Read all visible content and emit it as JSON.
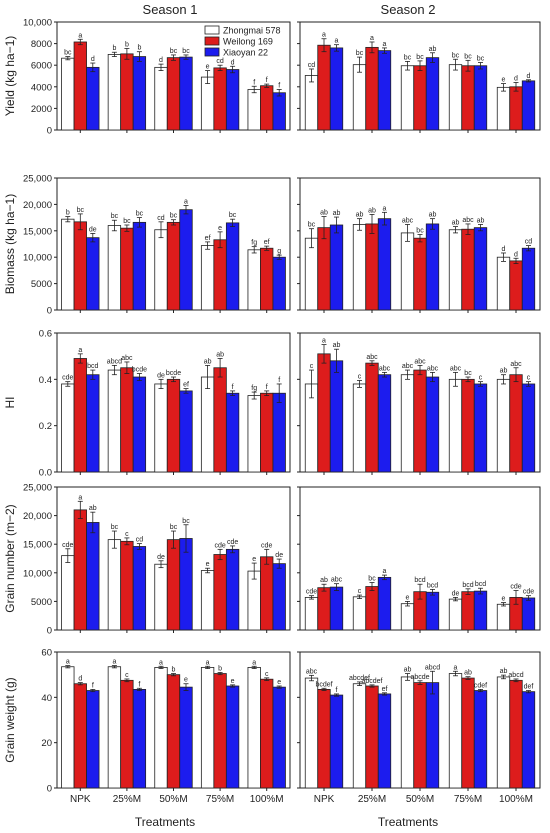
{
  "figure": {
    "season_titles": [
      "Season 1",
      "Season 2"
    ],
    "xlabel": "Treatments",
    "legend": [
      {
        "name": "Zhongmai 578",
        "color": "#ffffff"
      },
      {
        "name": "Weilong 169",
        "color": "#dd1c1c"
      },
      {
        "name": "Xiaoyan 22",
        "color": "#1c1cee"
      }
    ]
  },
  "chart_data": [
    {
      "type": "bar",
      "title": "Season 1",
      "ylabel": "Yield (kg ha−1)",
      "categories": [
        "NPK",
        "25%M",
        "50%M",
        "75%M",
        "100%M"
      ],
      "ylim": [
        0,
        10000
      ],
      "yticks": [
        0,
        2000,
        4000,
        6000,
        8000,
        10000
      ],
      "ytick_labels": [
        "0",
        "2000",
        "4000",
        "6000",
        "8000",
        "10,000"
      ],
      "series": [
        {
          "name": "Zhongmai 578",
          "values": [
            6650,
            7000,
            5800,
            4900,
            3750
          ],
          "errors": [
            150,
            200,
            300,
            600,
            300
          ],
          "letters": [
            "bc",
            "b",
            "d",
            "e",
            "f"
          ]
        },
        {
          "name": "Weilong 169",
          "values": [
            8150,
            7050,
            6700,
            5750,
            4100
          ],
          "errors": [
            250,
            500,
            250,
            250,
            150
          ],
          "letters": [
            "a",
            "b",
            "bc",
            "cd",
            "f"
          ]
        },
        {
          "name": "Xiaoyan 22",
          "values": [
            5800,
            6800,
            6750,
            5600,
            3450
          ],
          "errors": [
            400,
            450,
            200,
            300,
            300
          ],
          "letters": [
            "d",
            "b",
            "bc",
            "d",
            "f"
          ]
        }
      ]
    },
    {
      "type": "bar",
      "title": "Season 2",
      "ylabel": "",
      "categories": [
        "NPK",
        "25%M",
        "50%M",
        "75%M",
        "100%M"
      ],
      "ylim": [
        0,
        10000
      ],
      "yticks": [
        0,
        2000,
        4000,
        6000,
        8000,
        10000
      ],
      "ytick_labels": [
        "",
        "",
        "",
        "",
        "",
        ""
      ],
      "series": [
        {
          "name": "Zhongmai 578",
          "values": [
            5050,
            6050,
            5950,
            6050,
            3950
          ],
          "errors": [
            600,
            700,
            400,
            500,
            350
          ],
          "letters": [
            "cd",
            "bc",
            "bc",
            "bc",
            "e"
          ]
        },
        {
          "name": "Weilong 169",
          "values": [
            7850,
            7650,
            5950,
            5950,
            4000
          ],
          "errors": [
            600,
            500,
            450,
            500,
            400
          ],
          "letters": [
            "a",
            "a",
            "bc",
            "bc",
            "d"
          ]
        },
        {
          "name": "Xiaoyan 22",
          "values": [
            7600,
            7350,
            6700,
            5950,
            4550
          ],
          "errors": [
            300,
            250,
            450,
            300,
            100
          ],
          "letters": [
            "a",
            "a",
            "ab",
            "bc",
            "d"
          ]
        }
      ]
    },
    {
      "type": "bar",
      "title": "",
      "ylabel": "Biomass (kg ha−1)",
      "categories": [
        "NPK",
        "25%M",
        "50%M",
        "75%M",
        "100%M"
      ],
      "ylim": [
        0,
        25000
      ],
      "yticks": [
        0,
        5000,
        10000,
        15000,
        20000,
        25000
      ],
      "ytick_labels": [
        "0",
        "5000",
        "10,000",
        "15,000",
        "20,000",
        "25,000"
      ],
      "series": [
        {
          "name": "Zhongmai 578",
          "values": [
            17200,
            16000,
            15200,
            12200,
            11400
          ],
          "errors": [
            500,
            1000,
            1500,
            700,
            600
          ],
          "letters": [
            "b",
            "bc",
            "cd",
            "ef",
            "fg"
          ]
        },
        {
          "name": "Weilong 169",
          "values": [
            16700,
            15500,
            16600,
            13300,
            11700
          ],
          "errors": [
            1500,
            600,
            500,
            1500,
            400
          ],
          "letters": [
            "bc",
            "bc",
            "bc",
            "e",
            "ef"
          ]
        },
        {
          "name": "Xiaoyan 22",
          "values": [
            13700,
            16600,
            19000,
            16500,
            10000
          ],
          "errors": [
            800,
            900,
            800,
            700,
            400
          ],
          "letters": [
            "de",
            "bc",
            "a",
            "bc",
            "g"
          ]
        }
      ]
    },
    {
      "type": "bar",
      "title": "",
      "ylabel": "",
      "categories": [
        "NPK",
        "25%M",
        "50%M",
        "75%M",
        "100%M"
      ],
      "ylim": [
        0,
        25000
      ],
      "yticks": [
        0,
        5000,
        10000,
        15000,
        20000,
        25000
      ],
      "ytick_labels": [
        "",
        "",
        "",
        "",
        "",
        ""
      ],
      "series": [
        {
          "name": "Zhongmai 578",
          "values": [
            13600,
            16200,
            14600,
            15200,
            10000
          ],
          "errors": [
            1800,
            1100,
            1600,
            600,
            800
          ],
          "letters": [
            "bc",
            "ab",
            "abc",
            "ab",
            "d"
          ]
        },
        {
          "name": "Weilong 169",
          "values": [
            15600,
            16300,
            13600,
            15300,
            9300
          ],
          "errors": [
            2100,
            1800,
            700,
            1000,
            500
          ],
          "letters": [
            "ab",
            "ab",
            "bc",
            "abc",
            "d"
          ]
        },
        {
          "name": "Xiaoyan 22",
          "values": [
            16100,
            17300,
            16300,
            15600,
            11700
          ],
          "errors": [
            1500,
            1200,
            1000,
            600,
            500
          ],
          "letters": [
            "ab",
            "a",
            "ab",
            "ab",
            "cd"
          ]
        }
      ]
    },
    {
      "type": "bar",
      "title": "",
      "ylabel": "HI",
      "categories": [
        "NPK",
        "25%M",
        "50%M",
        "75%M",
        "100%M"
      ],
      "ylim": [
        0,
        0.6
      ],
      "yticks": [
        0,
        0.2,
        0.4,
        0.6
      ],
      "ytick_labels": [
        "0.0",
        "0.2",
        "0.4",
        "0.6"
      ],
      "series": [
        {
          "name": "Zhongmai 578",
          "values": [
            0.38,
            0.44,
            0.38,
            0.41,
            0.33
          ],
          "errors": [
            0.01,
            0.02,
            0.02,
            0.05,
            0.015
          ],
          "letters": [
            "cde",
            "abcd",
            "de",
            "ab",
            "fg"
          ]
        },
        {
          "name": "Weilong 169",
          "values": [
            0.49,
            0.45,
            0.4,
            0.45,
            0.34
          ],
          "errors": [
            0.02,
            0.025,
            0.01,
            0.04,
            0.01
          ],
          "letters": [
            "a",
            "abc",
            "bcde",
            "ab",
            "f"
          ]
        },
        {
          "name": "Xiaoyan 22",
          "values": [
            0.42,
            0.41,
            0.35,
            0.34,
            0.34
          ],
          "errors": [
            0.02,
            0.015,
            0.01,
            0.01,
            0.04
          ],
          "letters": [
            "bcd",
            "bcde",
            "ef",
            "f",
            "f"
          ]
        }
      ]
    },
    {
      "type": "bar",
      "title": "",
      "ylabel": "",
      "categories": [
        "NPK",
        "25%M",
        "50%M",
        "75%M",
        "100%M"
      ],
      "ylim": [
        0,
        0.6
      ],
      "yticks": [
        0,
        0.2,
        0.4,
        0.6
      ],
      "ytick_labels": [
        "",
        "",
        "",
        ""
      ],
      "series": [
        {
          "name": "Zhongmai 578",
          "values": [
            0.38,
            0.38,
            0.42,
            0.4,
            0.4
          ],
          "errors": [
            0.06,
            0.015,
            0.02,
            0.03,
            0.02
          ],
          "letters": [
            "c",
            "c",
            "abc",
            "abc",
            "ab"
          ]
        },
        {
          "name": "Weilong 169",
          "values": [
            0.51,
            0.47,
            0.44,
            0.4,
            0.42
          ],
          "errors": [
            0.04,
            0.01,
            0.02,
            0.01,
            0.03
          ],
          "letters": [
            "a",
            "abc",
            "abc",
            "bc",
            "abc"
          ]
        },
        {
          "name": "Xiaoyan 22",
          "values": [
            0.48,
            0.42,
            0.41,
            0.38,
            0.38
          ],
          "errors": [
            0.05,
            0.01,
            0.02,
            0.01,
            0.01
          ],
          "letters": [
            "ab",
            "abc",
            "abc",
            "c",
            "c"
          ]
        }
      ]
    },
    {
      "type": "bar",
      "title": "",
      "ylabel": "Grain number (m−2)",
      "categories": [
        "NPK",
        "25%M",
        "50%M",
        "75%M",
        "100%M"
      ],
      "ylim": [
        0,
        25000
      ],
      "yticks": [
        0,
        5000,
        10000,
        15000,
        20000,
        25000
      ],
      "ytick_labels": [
        "0",
        "5000",
        "10,000",
        "15,000",
        "20,000",
        "25,000"
      ],
      "series": [
        {
          "name": "Zhongmai 578",
          "values": [
            13000,
            15800,
            11500,
            10400,
            10300
          ],
          "errors": [
            1200,
            1500,
            600,
            400,
            1400
          ],
          "letters": [
            "cde",
            "bc",
            "de",
            "e",
            "e"
          ]
        },
        {
          "name": "Weilong 169",
          "values": [
            21000,
            15500,
            15800,
            13200,
            12800
          ],
          "errors": [
            1500,
            600,
            1500,
            900,
            1300
          ],
          "letters": [
            "a",
            "c",
            "bc",
            "cde",
            "cde"
          ]
        },
        {
          "name": "Xiaoyan 22",
          "values": [
            18800,
            14600,
            16000,
            14100,
            11600
          ],
          "errors": [
            1800,
            500,
            2400,
            600,
            800
          ],
          "letters": [
            "ab",
            "cd",
            "bc",
            "cde",
            "de"
          ]
        }
      ]
    },
    {
      "type": "bar",
      "title": "",
      "ylabel": "",
      "categories": [
        "NPK",
        "25%M",
        "50%M",
        "75%M",
        "100%M"
      ],
      "ylim": [
        0,
        25000
      ],
      "yticks": [
        0,
        5000,
        10000,
        15000,
        20000,
        25000
      ],
      "ytick_labels": [
        "",
        "",
        "",
        "",
        "",
        ""
      ],
      "series": [
        {
          "name": "Zhongmai 578",
          "values": [
            5700,
            5800,
            4600,
            5400,
            4500
          ],
          "errors": [
            300,
            300,
            400,
            300,
            300
          ],
          "letters": [
            "cde",
            "c",
            "e",
            "de",
            "e"
          ]
        },
        {
          "name": "Weilong 169",
          "values": [
            7400,
            7600,
            6700,
            6700,
            5700
          ],
          "errors": [
            600,
            700,
            1300,
            500,
            1200
          ],
          "letters": [
            "ab",
            "bc",
            "bcd",
            "bcd",
            "cde"
          ]
        },
        {
          "name": "Xiaoyan 22",
          "values": [
            7500,
            9200,
            6600,
            6800,
            5600
          ],
          "errors": [
            600,
            400,
            500,
            500,
            400
          ],
          "letters": [
            "abc",
            "a",
            "bcd",
            "bcd",
            "cde"
          ]
        }
      ]
    },
    {
      "type": "bar",
      "title": "",
      "ylabel": "Grain weight (g)",
      "categories": [
        "NPK",
        "25%M",
        "50%M",
        "75%M",
        "100%M"
      ],
      "ylim": [
        0,
        60
      ],
      "yticks": [
        0,
        20,
        40,
        60
      ],
      "ytick_labels": [
        "0",
        "20",
        "40",
        "60"
      ],
      "series": [
        {
          "name": "Zhongmai 578",
          "values": [
            53.5,
            53.5,
            53.2,
            53.2,
            53.2
          ],
          "errors": [
            0.5,
            0.5,
            0.5,
            0.5,
            0.5
          ],
          "letters": [
            "a",
            "a",
            "a",
            "a",
            "a"
          ]
        },
        {
          "name": "Weilong 169",
          "values": [
            46.0,
            47.5,
            50.0,
            50.5,
            48.0
          ],
          "errors": [
            0.5,
            0.6,
            0.5,
            0.5,
            0.6
          ],
          "letters": [
            "d",
            "c",
            "b",
            "b",
            "c"
          ]
        },
        {
          "name": "Xiaoyan 22",
          "values": [
            43.0,
            43.5,
            44.5,
            45.0,
            44.5
          ],
          "errors": [
            0.5,
            0.5,
            1.5,
            0.5,
            0.5
          ],
          "letters": [
            "f",
            "f",
            "e",
            "e",
            "e"
          ]
        }
      ]
    },
    {
      "type": "bar",
      "title": "",
      "ylabel": "",
      "categories": [
        "NPK",
        "25%M",
        "50%M",
        "75%M",
        "100%M"
      ],
      "ylim": [
        0,
        60
      ],
      "yticks": [
        0,
        20,
        40,
        60
      ],
      "ytick_labels": [
        "",
        "",
        "",
        ""
      ],
      "series": [
        {
          "name": "Zhongmai 578",
          "values": [
            48.5,
            46.0,
            49.0,
            50.5,
            49.0
          ],
          "errors": [
            1.2,
            0.8,
            1.5,
            1.0,
            0.8
          ],
          "letters": [
            "abc",
            "abcdef",
            "ab",
            "a",
            "ab"
          ]
        },
        {
          "name": "Weilong 169",
          "values": [
            43.5,
            45.0,
            46.5,
            48.5,
            47.5
          ],
          "errors": [
            0.5,
            0.5,
            0.8,
            0.6,
            0.6
          ],
          "letters": [
            "bcdef",
            "abcdef",
            "abcde",
            "ab",
            "abcd"
          ]
        },
        {
          "name": "Xiaoyan 22",
          "values": [
            41.0,
            41.5,
            46.5,
            43.0,
            42.5
          ],
          "errors": [
            0.5,
            0.5,
            5.0,
            0.5,
            0.5
          ],
          "letters": [
            "f",
            "ef",
            "abcd",
            "cdef",
            "def"
          ]
        }
      ]
    }
  ]
}
